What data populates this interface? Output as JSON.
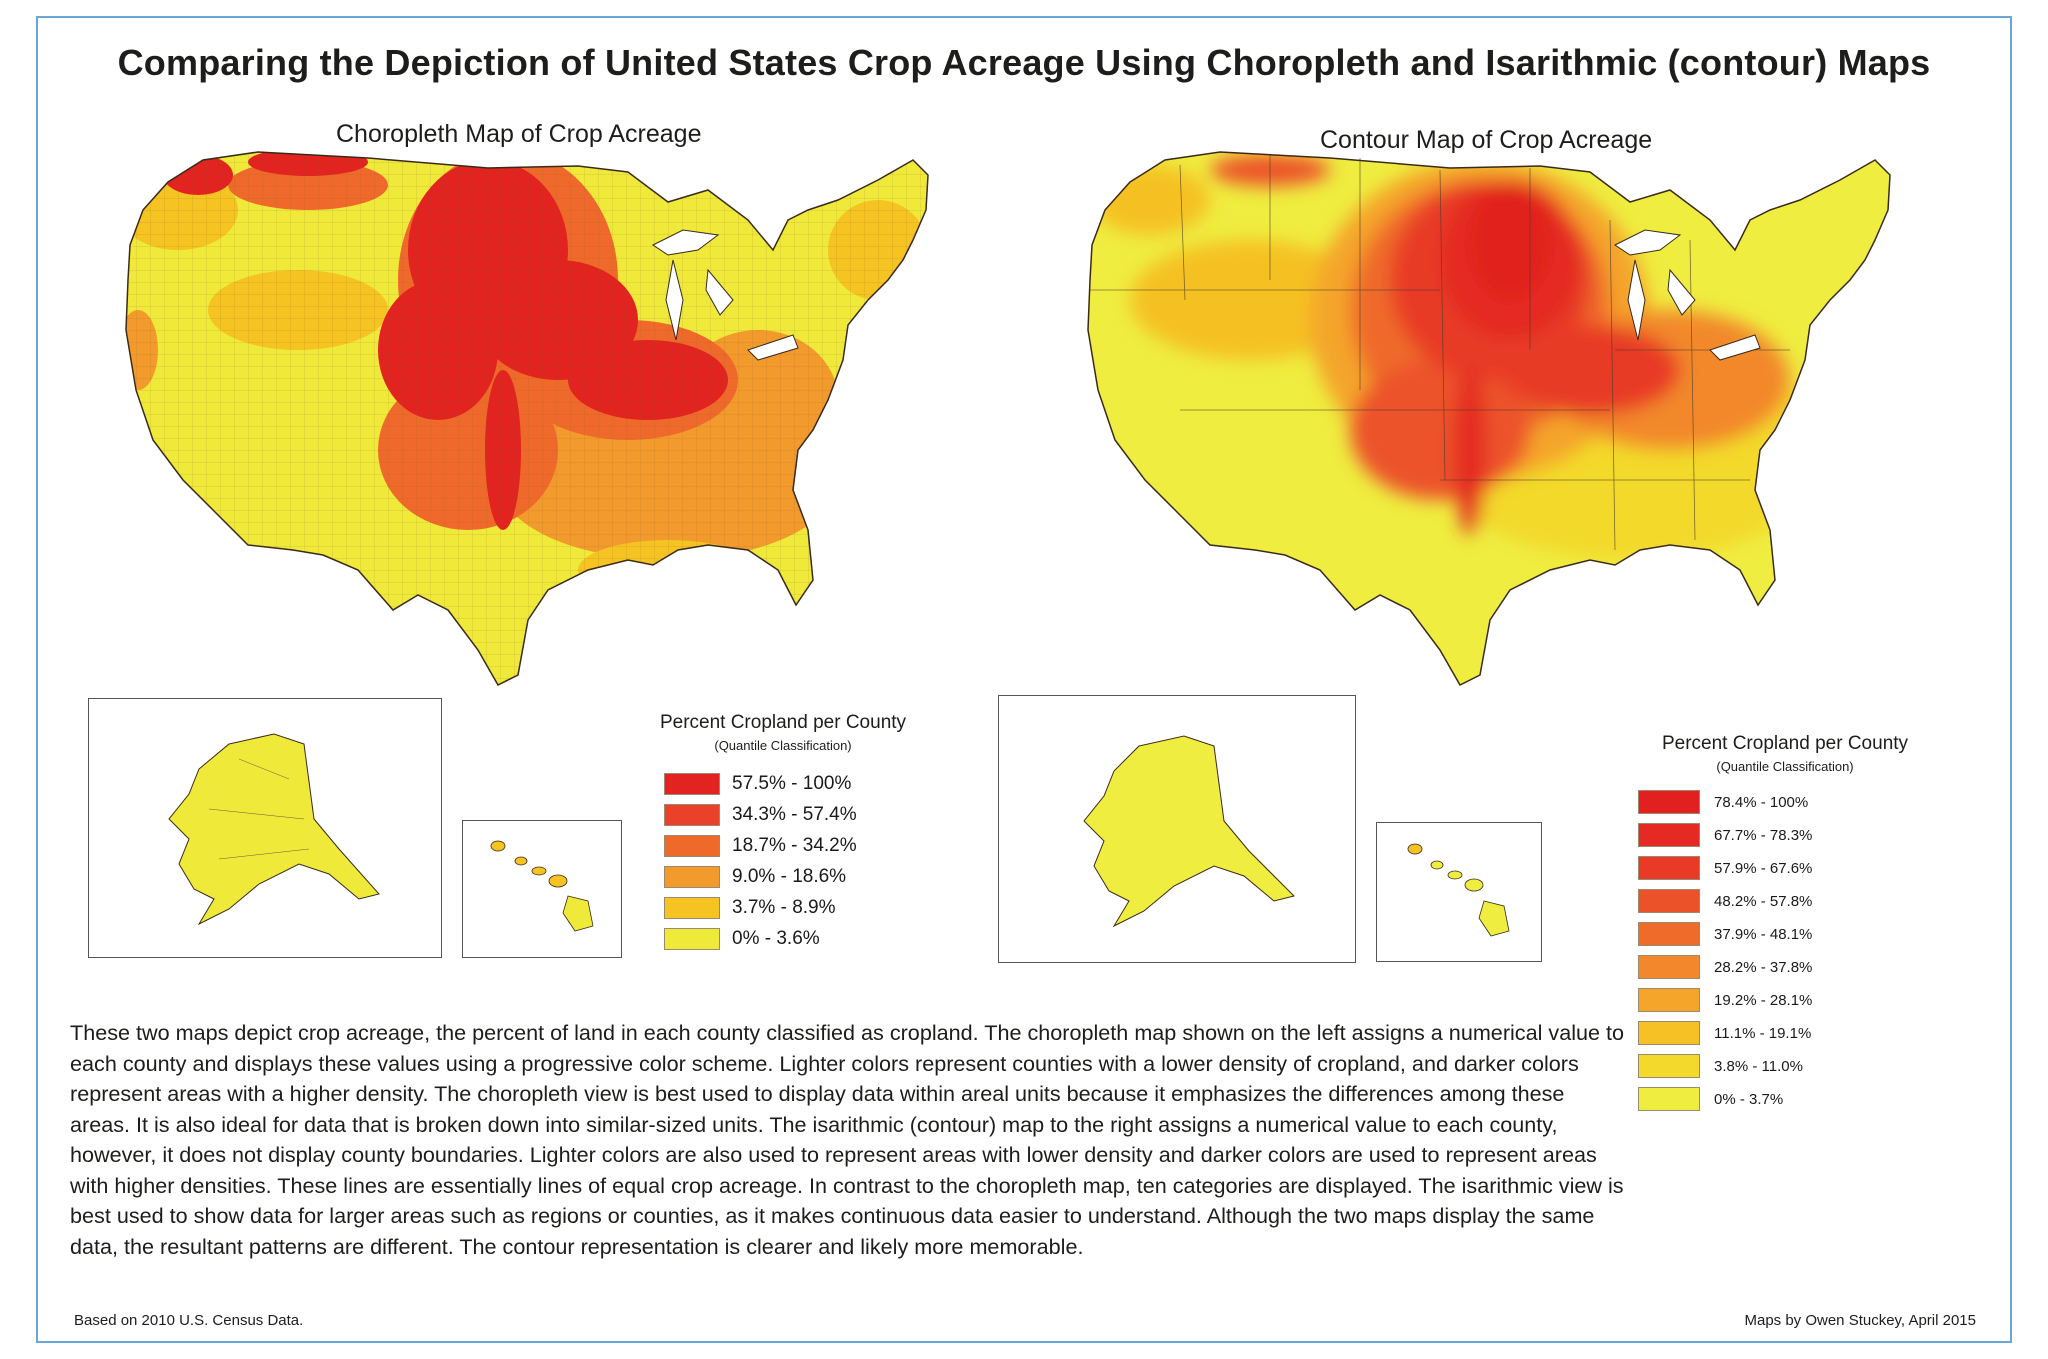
{
  "title": "Comparing the Depiction of United States Crop Acreage Using Choropleth and Isarithmic (contour) Maps",
  "left_map": {
    "title": "Choropleth Map of Crop Acreage",
    "legend": {
      "title": "Percent Cropland per County",
      "subtitle": "(Quantile Classification)",
      "classes": [
        {
          "label": "57.5% - 100%",
          "color": "#e2231f"
        },
        {
          "label": "34.3%  - 57.4%",
          "color": "#e9412a"
        },
        {
          "label": "18.7% - 34.2%",
          "color": "#ef6a2a"
        },
        {
          "label": "9.0% - 18.6%",
          "color": "#f39a2c"
        },
        {
          "label": "3.7% - 8.9%",
          "color": "#f5c322"
        },
        {
          "label": "0% - 3.6%",
          "color": "#efe93a"
        }
      ]
    }
  },
  "right_map": {
    "title": "Contour Map of Crop Acreage",
    "legend": {
      "title": "Percent Cropland per County",
      "subtitle": "(Quantile Classification)",
      "classes": [
        {
          "label": "78.4% - 100%",
          "color": "#e1201f"
        },
        {
          "label": "67.7% - 78.3%",
          "color": "#e42a22"
        },
        {
          "label": "57.9% - 67.6%",
          "color": "#e83a27"
        },
        {
          "label": "48.2% - 57.8%",
          "color": "#ec5229"
        },
        {
          "label": "37.9% - 48.1%",
          "color": "#ef6b2a"
        },
        {
          "label": "28.2% - 37.8%",
          "color": "#f2882b"
        },
        {
          "label": "19.2% - 28.1%",
          "color": "#f4a52a"
        },
        {
          "label": "11.1% - 19.1%",
          "color": "#f5c124"
        },
        {
          "label": "3.8% - 11.0%",
          "color": "#f3d92b"
        },
        {
          "label": "0% - 3.7%",
          "color": "#efed40"
        }
      ]
    }
  },
  "description": "These two maps depict crop acreage, the percent of land in each county classified as cropland. The choropleth map shown on the left assigns a numerical value to each county and displays these values using a progressive color scheme. Lighter colors represent counties with a lower density of cropland, and darker colors represent areas with a higher density. The choropleth view is best used to display data within areal units because it emphasizes the differences among these areas. It is also ideal for data that is broken down into similar-sized units. The isarithmic (contour) map to the right assigns a numerical value to each county, however, it does not display county boundaries. Lighter colors are also used to represent areas with lower density and darker colors are used to represent areas with higher densities. These lines are essentially lines of equal crop acreage. In contrast to the choropleth map, ten categories are displayed. The  isarithmic view is best used to show data for larger areas such as regions or counties, as it makes continuous data easier to understand. Although the two maps display the same data, the resultant patterns are different. The contour representation is clearer and likely more memorable.",
  "footer": {
    "source": "Based on 2010 U.S. Census Data.",
    "credit": "Maps by Owen Stuckey, April 2015"
  }
}
